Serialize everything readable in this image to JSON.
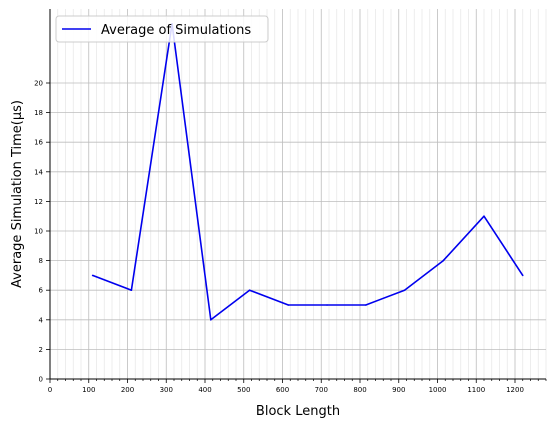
{
  "chart_data": {
    "type": "line",
    "xlabel": "Block Length",
    "ylabel": "Average Simulation Time(μs)",
    "xlim": [
      0,
      1280
    ],
    "ylim": [
      0,
      25
    ],
    "x_major_ticks": [
      0,
      100,
      200,
      300,
      400,
      500,
      600,
      700,
      800,
      900,
      1000,
      1100,
      1200
    ],
    "x_minor_step": 20,
    "y_ticks": [
      0,
      2,
      4,
      6,
      8,
      10,
      12,
      14,
      16,
      18,
      20
    ],
    "grid": true,
    "legend_position": "upper-left",
    "series": [
      {
        "name": "Average of Simulations",
        "color": "#0000ee",
        "x": [
          110,
          210,
          315,
          415,
          515,
          615,
          715,
          815,
          915,
          1015,
          1120,
          1220
        ],
        "y": [
          7,
          6,
          24,
          4,
          6,
          5,
          5,
          5,
          6,
          8,
          11,
          7
        ]
      }
    ]
  }
}
